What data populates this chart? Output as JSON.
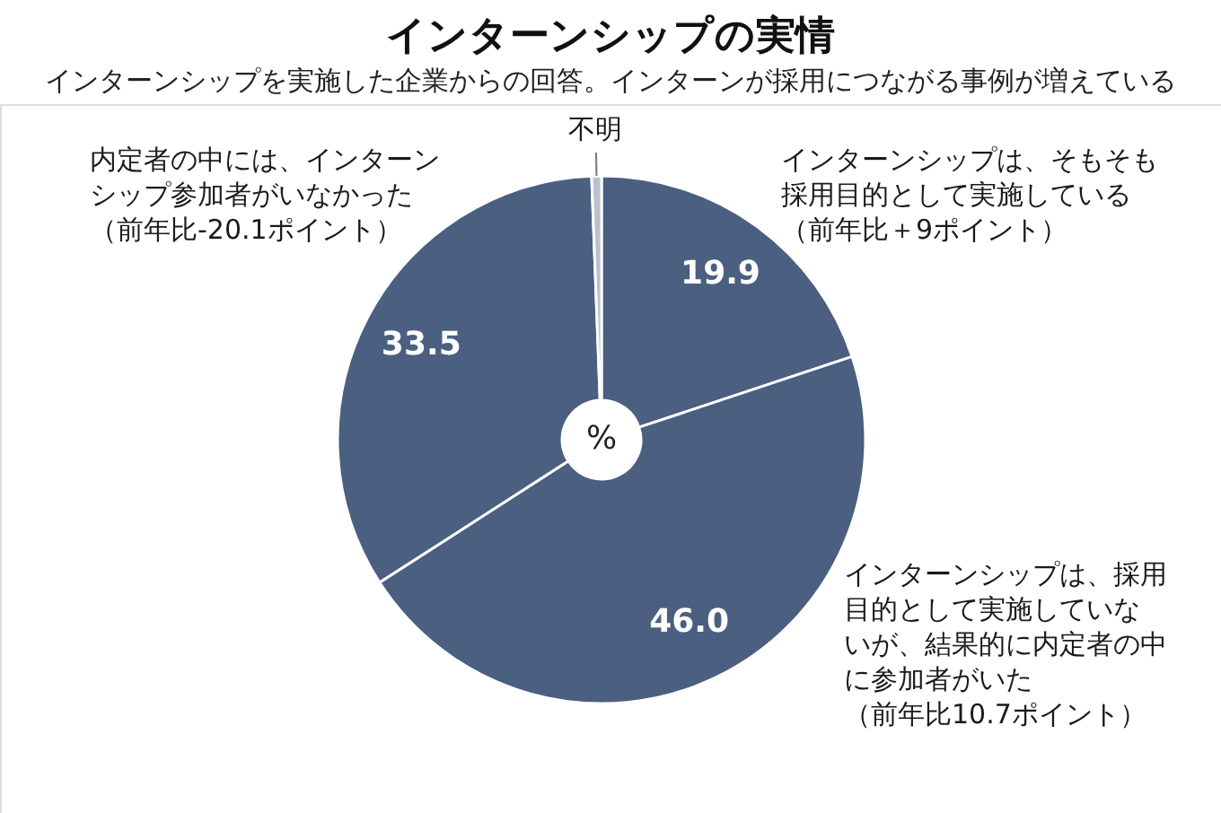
{
  "chart_data": {
    "type": "donut",
    "title": "インターンシップの実情",
    "subtitle": "インターンシップを実施した企業からの回答。インターンが採用につながる事例が増えている",
    "categories": [
      "インターンシップは、そもそも採用目的として実施している（前年比＋9ポイント）",
      "インターンシップは、採用目的として実施していないが、結果的に内定者の中に参加者がいた（前年比10.7ポイント）",
      "内定者の中には、インターンシップ参加者がいなかった（前年比-20.1ポイント）",
      "不明"
    ],
    "values": [
      19.9,
      46.0,
      33.5,
      0.6
    ],
    "colors": [
      "#4b5f80",
      "#4b5f80",
      "#4b5f80",
      "#b9c1cd"
    ],
    "value_labels": [
      "19.9",
      "46.0",
      "33.5",
      null
    ],
    "annotations": [
      "%"
    ]
  }
}
